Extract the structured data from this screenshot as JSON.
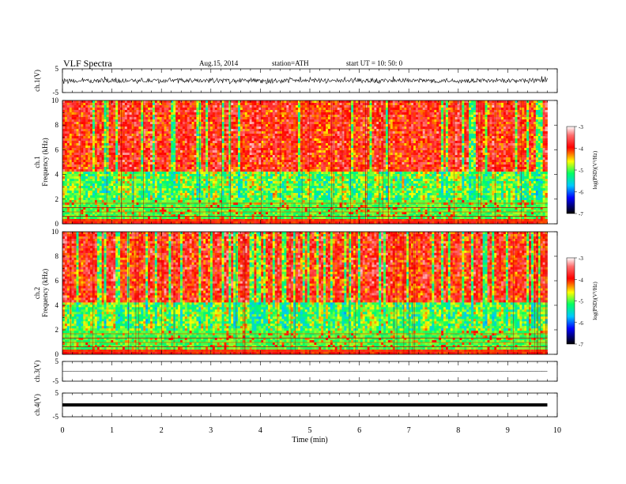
{
  "header": {
    "title": "VLF  Spectra",
    "date": "Aug.15, 2014",
    "station": "station=ATH",
    "start": "start  UT  =   10: 50: 0"
  },
  "chart_data": [
    {
      "type": "line",
      "panel": "ch1-waveform",
      "ylabel": "ch.1(V)",
      "ylim": [
        -5,
        5
      ],
      "yticks": [
        "5",
        "-5"
      ],
      "xlim": [
        0,
        10
      ],
      "description_values": {
        "baseline_V": 0.0,
        "noise_amplitude_V": 1.2
      },
      "line_color": "#000000"
    },
    {
      "type": "heatmap",
      "panel": "ch1-spectrogram",
      "ylabel": "ch.1\nFrequency  (kHz)",
      "ylabel_lines": [
        "ch.1",
        "Frequency  (kHz)"
      ],
      "ylim": [
        0,
        10
      ],
      "yticks": [
        "0",
        "2",
        "4",
        "6",
        "8",
        "10"
      ],
      "xlim": [
        0,
        9.8
      ],
      "colorbar": {
        "label": "log(PSD)(V²/Hz)",
        "range": [
          -7,
          -3
        ],
        "ticks": [
          "-3",
          "-4",
          "-5",
          "-6",
          "-7"
        ],
        "colors": [
          "#000000",
          "#0000ff",
          "#00c8ff",
          "#00ff64",
          "#ffff00",
          "#ff0000",
          "#ffffff"
        ]
      }
    },
    {
      "type": "heatmap",
      "panel": "ch2-spectrogram",
      "ylabel": "ch.2\nFrequency  (kHz)",
      "ylabel_lines": [
        "ch.2",
        "Frequency  (kHz)"
      ],
      "ylim": [
        0,
        10
      ],
      "yticks": [
        "0",
        "2",
        "4",
        "6",
        "8",
        "10"
      ],
      "xlim": [
        0,
        9.8
      ],
      "colorbar": {
        "label": "log(PSD)(V²/Hz)",
        "range": [
          -7,
          -3
        ],
        "ticks": [
          "-3",
          "-4",
          "-5",
          "-6",
          "-7"
        ],
        "colors": [
          "#000000",
          "#0000ff",
          "#00c8ff",
          "#00ff64",
          "#ffff00",
          "#ff0000",
          "#ffffff"
        ]
      }
    },
    {
      "type": "line",
      "panel": "ch3-waveform",
      "ylabel": "ch.3(V)",
      "ylim": [
        -5,
        5
      ],
      "yticks": [
        "5",
        "-5"
      ],
      "xlim": [
        0,
        10
      ],
      "description_values": {
        "baseline_V": 0.0,
        "noise_amplitude_V": 0.1
      }
    },
    {
      "type": "line",
      "panel": "ch4-waveform",
      "ylabel": "ch.4(V)",
      "ylim": [
        -5,
        5
      ],
      "yticks": [
        "5",
        "-5"
      ],
      "xlim": [
        0,
        10
      ],
      "description_values": {
        "baseline_V": 0.0,
        "noise_amplitude_V": 0.0
      }
    }
  ],
  "xaxis": {
    "label": "Time  (min)",
    "ticks": [
      "0",
      "1",
      "2",
      "3",
      "4",
      "5",
      "6",
      "7",
      "8",
      "9",
      "10"
    ],
    "range": [
      0,
      10
    ]
  }
}
